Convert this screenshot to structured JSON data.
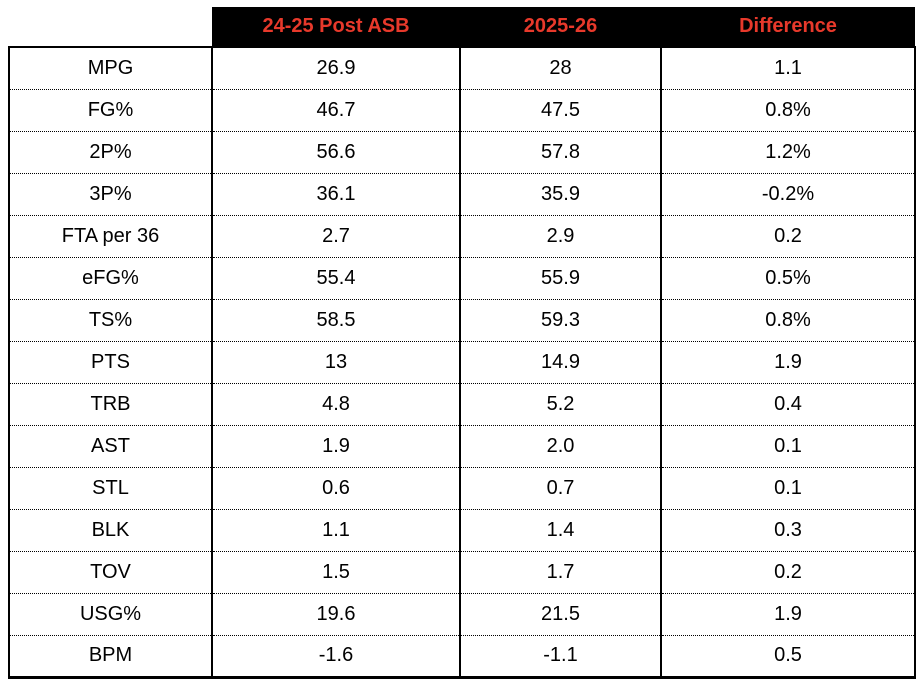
{
  "colors": {
    "header_bg": "#000000",
    "header_text": "#E8392B",
    "body_text": "#000000",
    "background": "#FFFFFF"
  },
  "chart_data": {
    "type": "table",
    "title": "",
    "columns": [
      "",
      "24-25 Post ASB",
      "2025-26",
      "Difference"
    ],
    "rows": [
      [
        "MPG",
        "26.9",
        "28",
        "1.1"
      ],
      [
        "FG%",
        "46.7",
        "47.5",
        "0.8%"
      ],
      [
        "2P%",
        "56.6",
        "57.8",
        "1.2%"
      ],
      [
        "3P%",
        "36.1",
        "35.9",
        "-0.2%"
      ],
      [
        "FTA per 36",
        "2.7",
        "2.9",
        "0.2"
      ],
      [
        "eFG%",
        "55.4",
        "55.9",
        "0.5%"
      ],
      [
        "TS%",
        "58.5",
        "59.3",
        "0.8%"
      ],
      [
        "PTS",
        "13",
        "14.9",
        "1.9"
      ],
      [
        "TRB",
        "4.8",
        "5.2",
        "0.4"
      ],
      [
        "AST",
        "1.9",
        "2.0",
        "0.1"
      ],
      [
        "STL",
        "0.6",
        "0.7",
        "0.1"
      ],
      [
        "BLK",
        "1.1",
        "1.4",
        "0.3"
      ],
      [
        "TOV",
        "1.5",
        "1.7",
        "0.2"
      ],
      [
        "USG%",
        "19.6",
        "21.5",
        "1.9"
      ],
      [
        "BPM",
        "-1.6",
        "-1.1",
        "0.5"
      ]
    ]
  }
}
